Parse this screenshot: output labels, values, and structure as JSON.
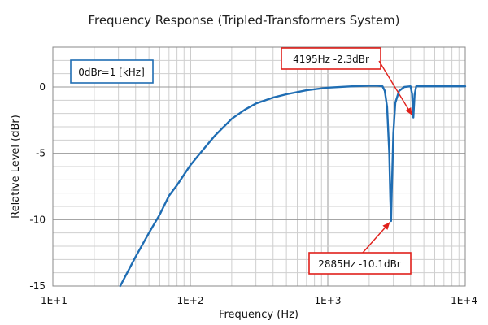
{
  "chart_data": {
    "type": "line",
    "title": "Frequency Response (Tripled-Transformers System)",
    "xlabel": "Frequency (Hz)",
    "ylabel": "Relative Level (dBr)",
    "x_scale": "log",
    "xlim": [
      10,
      10000
    ],
    "ylim": [
      -15,
      3
    ],
    "grid": true,
    "x_ticks": [
      {
        "value": 10,
        "label": "1E+1"
      },
      {
        "value": 100,
        "label": "1E+2"
      },
      {
        "value": 1000,
        "label": "1E+3"
      },
      {
        "value": 10000,
        "label": "1E+4"
      }
    ],
    "y_ticks": [
      {
        "value": 0,
        "label": "0"
      },
      {
        "value": -5,
        "label": "-5"
      },
      {
        "value": -10,
        "label": "-10"
      },
      {
        "value": -15,
        "label": "-15"
      }
    ],
    "series": [
      {
        "color": "#1f6db3",
        "points": [
          [
            30.9,
            -15.0
          ],
          [
            40,
            -12.8
          ],
          [
            50,
            -11.0
          ],
          [
            60,
            -9.6
          ],
          [
            70,
            -8.2
          ],
          [
            80,
            -7.4
          ],
          [
            90,
            -6.6
          ],
          [
            100,
            -5.9
          ],
          [
            120,
            -4.9
          ],
          [
            150,
            -3.7
          ],
          [
            200,
            -2.4
          ],
          [
            250,
            -1.7
          ],
          [
            300,
            -1.25
          ],
          [
            400,
            -0.8
          ],
          [
            500,
            -0.55
          ],
          [
            700,
            -0.25
          ],
          [
            1000,
            -0.05
          ],
          [
            1500,
            0.05
          ],
          [
            2000,
            0.1
          ],
          [
            2300,
            0.1
          ],
          [
            2500,
            0.05
          ],
          [
            2600,
            -0.3
          ],
          [
            2700,
            -1.5
          ],
          [
            2800,
            -5.0
          ],
          [
            2850,
            -8.5
          ],
          [
            2885,
            -10.1
          ],
          [
            2920,
            -8.0
          ],
          [
            3000,
            -3.5
          ],
          [
            3100,
            -1.2
          ],
          [
            3300,
            -0.3
          ],
          [
            3600,
            0.0
          ],
          [
            4000,
            0.05
          ],
          [
            4100,
            -0.5
          ],
          [
            4195,
            -2.3
          ],
          [
            4280,
            -0.6
          ],
          [
            4400,
            0.05
          ],
          [
            5000,
            0.05
          ],
          [
            7000,
            0.05
          ],
          [
            10000,
            0.05
          ]
        ]
      }
    ],
    "annotations": [
      {
        "text": "0dBr=1 [kHz]",
        "style": "blue-box"
      },
      {
        "text": "4195Hz  -2.3dBr",
        "style": "red-box",
        "target": [
          4195,
          -2.3
        ]
      },
      {
        "text": "2885Hz  -10.1dBr",
        "style": "red-box",
        "target": [
          2885,
          -10.1
        ]
      }
    ]
  }
}
